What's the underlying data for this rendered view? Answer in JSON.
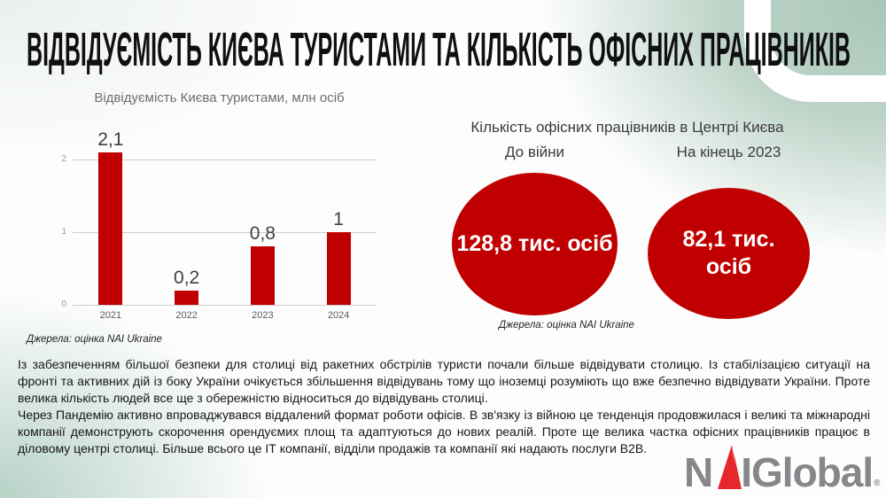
{
  "slide": {
    "title": "ВІДВІДУЄМІСТЬ КИЄВА ТУРИСТАМИ ТА КІЛЬКІСТЬ ОФІСНИХ ПРАЦІВНИКІВ"
  },
  "chart_data": {
    "type": "bar",
    "title": "Відвідуємість Києва туристами, млн осіб",
    "categories": [
      "2021",
      "2022",
      "2023",
      "2024"
    ],
    "values": [
      2.1,
      0.2,
      0.8,
      1
    ],
    "value_labels": [
      "2,1",
      "0,2",
      "0,8",
      "1"
    ],
    "ylim": [
      0,
      2
    ],
    "yticks": [
      0,
      1,
      2
    ],
    "grid": "horizontal",
    "bar_color": "#C00000",
    "source": "Джерела: оцінка NAI Ukraine"
  },
  "office": {
    "title": "Кількість офісних працівників в Центрі Києва",
    "circle_color": "#C00000",
    "items": [
      {
        "label": "До війни",
        "value": "128,8 тис. осіб"
      },
      {
        "label": "На кінець 2023",
        "value": "82,1 тис. осіб"
      }
    ],
    "source": "Джерела: оцінка NAI Ukraine"
  },
  "body": {
    "paragraph1": "Із забезпеченням більшої безпеки для столиці від ракетних обстрілів туристи почали більше відвідувати столицю. Із стабілізацією ситуації на фронті та активних дій із боку України очікується збільшення відвідувань тому що іноземці розуміють що вже безпечно відвідувати України. Проте велика кількість людей все ще з обережністю відноситься до відвідувань столиці.",
    "paragraph2": "Через Пандемію активно впроваджувався віддалений формат роботи офісів. В зв'язку із війною це тенденція продовжилася і великі та міжнародні компанії демонструють скорочення орендуємих площ та адаптуються до нових реалій. Проте ще велика частка офісних працівників працює в діловому центрі столиці. Більше всього це ІТ компанії, відділи продажів та компанії які надають послуги B2B."
  },
  "logo": {
    "n": "N",
    "i": "I",
    "global": "Global",
    "reg": "®"
  },
  "colors": {
    "accent_red": "#C00000",
    "logo_red": "#E8272D",
    "logo_gray": "#85878A",
    "background_green": "#AEC9BC"
  }
}
